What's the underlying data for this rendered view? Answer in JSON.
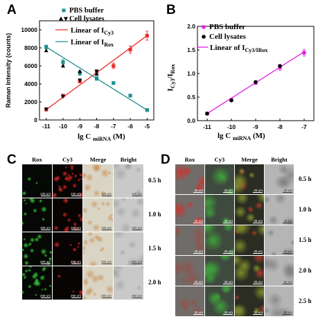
{
  "panels": {
    "A": {
      "letter": "A",
      "chart_data": {
        "type": "scatter",
        "xlabel_main": "lg C",
        "xlabel_sub": "miRNA",
        "xlabel_unit": "(M)",
        "ylabel": "Raman Intensity (counts)",
        "xlim": [
          -11.4,
          -4.6
        ],
        "ylim": [
          0,
          11000
        ],
        "xticks": [
          -11,
          -10,
          -9,
          -8,
          -7,
          -6,
          -5
        ],
        "yticks": [
          0,
          2000,
          4000,
          6000,
          8000,
          10000
        ],
        "legend": [
          {
            "label": "PBS buffer",
            "marker": "teal-square"
          },
          {
            "label": "Cell lysates",
            "marker": "black-triangles"
          },
          {
            "label_main": "Linear of I",
            "label_sub": "Cy3",
            "color": "#e8302a"
          },
          {
            "label_main": "Linear of I",
            "label_sub": "Rox",
            "color": "#1f8f8f"
          }
        ],
        "series": [
          {
            "name": "Cy3 (PBS buffer)",
            "color": "#e8302a",
            "x": [
              -11,
              -10,
              -9,
              -8,
              -7,
              -6,
              -5
            ],
            "y": [
              1150,
              2700,
              4300,
              5300,
              6000,
              7800,
              9350
            ],
            "err": [
              150,
              150,
              200,
              250,
              300,
              400,
              500
            ]
          },
          {
            "name": "Rox (PBS buffer)",
            "color": "#1f8f8f",
            "x": [
              -11,
              -10,
              -9,
              -8,
              -7,
              -6,
              -5
            ],
            "y": [
              8100,
              6400,
              5200,
              4600,
              4100,
              2700,
              1100
            ],
            "err": [
              200,
              300,
              250,
              200,
              150,
              150,
              100
            ]
          },
          {
            "name": "Cy3 (Cell lysates)",
            "marker": "down-triangle",
            "x": [
              -11,
              -10,
              -9,
              -8
            ],
            "y": [
              1200,
              2600,
              4400,
              5400
            ]
          },
          {
            "name": "Rox (Cell lysates)",
            "marker": "up-triangle",
            "x": [
              -11,
              -10,
              -9,
              -8
            ],
            "y": [
              7700,
              6000,
              5400,
              5100
            ]
          }
        ],
        "fit_lines": [
          {
            "color": "#e8302a",
            "x": [
              -11,
              -5
            ],
            "y": [
              1150,
              9350
            ]
          },
          {
            "color": "#1f8f8f",
            "x": [
              -11,
              -5
            ],
            "y": [
              8100,
              1100
            ]
          }
        ]
      }
    },
    "B": {
      "letter": "B",
      "chart_data": {
        "type": "scatter",
        "xlabel_main": "lg C",
        "xlabel_sub": "miRNA",
        "xlabel_unit": "(M)",
        "ylabel_main": "I",
        "ylabel_sub1": "Cy3",
        "ylabel_mid": "/I",
        "ylabel_sub2": "Rox",
        "xlim": [
          -11.4,
          -6.6
        ],
        "ylim": [
          0,
          2.0
        ],
        "xticks": [
          -11,
          -10,
          -9,
          -8,
          -7
        ],
        "yticks": [
          "0.0",
          "0.5",
          "1.0",
          "1.5",
          "2.0"
        ],
        "legend": [
          {
            "label": "PBS buffer",
            "marker": "magenta-square"
          },
          {
            "label": "Cell lysates",
            "marker": "black-circle"
          },
          {
            "label_main": "Linear of I",
            "label_sub": "Cy3/I",
            "label_sub2": "Rox",
            "color": "#e020e0"
          }
        ],
        "series": [
          {
            "name": "PBS buffer",
            "color": "#e020e0",
            "x": [
              -11,
              -10,
              -9,
              -8,
              -7
            ],
            "y": [
              0.15,
              0.44,
              0.8,
              1.13,
              1.44
            ],
            "err": [
              0.02,
              0.03,
              0.03,
              0.06,
              0.07
            ]
          },
          {
            "name": "Cell lysates",
            "color": "#000000",
            "x": [
              -11,
              -10,
              -9,
              -8
            ],
            "y": [
              0.15,
              0.43,
              0.82,
              1.16
            ]
          }
        ],
        "fit_lines": [
          {
            "color": "#e020e0",
            "x": [
              -11,
              -7
            ],
            "y": [
              0.15,
              1.46
            ]
          }
        ]
      }
    },
    "C": {
      "letter": "C",
      "columns": [
        "Rox",
        "Cy3",
        "Merge",
        "Bright"
      ],
      "rows": [
        {
          "time": "0.5 h",
          "scale": "125 um"
        },
        {
          "time": "1.0 h",
          "scale": "150 um"
        },
        {
          "time": "1.5 h",
          "scale": "200 um"
        },
        {
          "time": "2.0 h",
          "scale": "250 um"
        }
      ]
    },
    "D": {
      "letter": "D",
      "columns": [
        "Rox",
        "Cy3",
        "Merge",
        "Bright"
      ],
      "rows": [
        {
          "time": "0.5 h",
          "scale": "25 um"
        },
        {
          "time": "1.0 h",
          "scale": "25 um"
        },
        {
          "time": "1.5 h",
          "scale": "25 um"
        },
        {
          "time": "2.0 h",
          "scale": "25 um"
        },
        {
          "time": "2.5 h",
          "scale": "30 um"
        }
      ]
    }
  }
}
